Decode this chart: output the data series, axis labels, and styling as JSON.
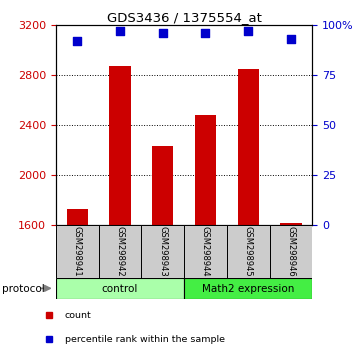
{
  "title": "GDS3436 / 1375554_at",
  "samples": [
    "GSM298941",
    "GSM298942",
    "GSM298943",
    "GSM298944",
    "GSM298945",
    "GSM298946"
  ],
  "counts": [
    1730,
    2870,
    2230,
    2480,
    2850,
    1615
  ],
  "percentile_ranks": [
    92,
    97,
    96,
    96,
    97,
    93
  ],
  "ylim_left": [
    1600,
    3200
  ],
  "yticks_left": [
    1600,
    2000,
    2400,
    2800,
    3200
  ],
  "ylim_right": [
    0,
    100
  ],
  "yticks_right": [
    0,
    25,
    50,
    75,
    100
  ],
  "ytick_right_labels": [
    "0",
    "25",
    "50",
    "75",
    "100%"
  ],
  "bar_color": "#cc0000",
  "dot_color": "#0000cc",
  "groups": [
    {
      "label": "control",
      "indices": [
        0,
        1,
        2
      ],
      "color": "#aaffaa"
    },
    {
      "label": "Math2 expression",
      "indices": [
        3,
        4,
        5
      ],
      "color": "#44ee44"
    }
  ],
  "protocol_label": "protocol",
  "legend_items": [
    {
      "label": "count",
      "color": "#cc0000"
    },
    {
      "label": "percentile rank within the sample",
      "color": "#0000cc"
    }
  ],
  "bg_color": "#ffffff",
  "plot_bg": "#ffffff",
  "sample_bg": "#cccccc",
  "bar_width": 0.5
}
